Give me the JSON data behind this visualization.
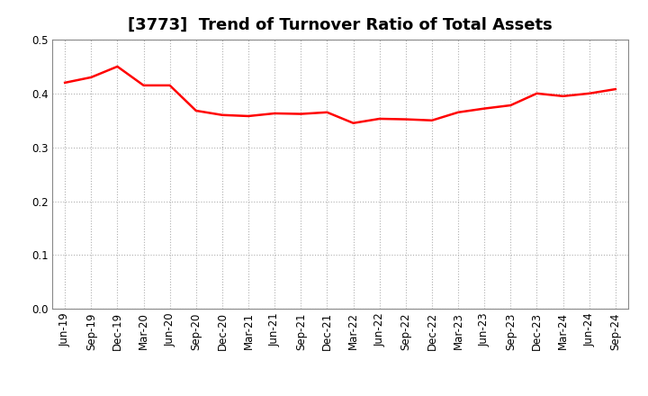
{
  "title": "[3773]  Trend of Turnover Ratio of Total Assets",
  "labels": [
    "Jun-19",
    "Sep-19",
    "Dec-19",
    "Mar-20",
    "Jun-20",
    "Sep-20",
    "Dec-20",
    "Mar-21",
    "Jun-21",
    "Sep-21",
    "Dec-21",
    "Mar-22",
    "Jun-22",
    "Sep-22",
    "Dec-22",
    "Mar-23",
    "Jun-23",
    "Sep-23",
    "Dec-23",
    "Mar-24",
    "Jun-24",
    "Sep-24"
  ],
  "values": [
    0.42,
    0.43,
    0.45,
    0.415,
    0.415,
    0.368,
    0.36,
    0.358,
    0.363,
    0.362,
    0.365,
    0.345,
    0.353,
    0.352,
    0.35,
    0.365,
    0.372,
    0.378,
    0.4,
    0.395,
    0.4,
    0.408
  ],
  "line_color": "#FF0000",
  "line_width": 1.8,
  "ylim": [
    0.0,
    0.5
  ],
  "yticks": [
    0.0,
    0.1,
    0.2,
    0.3,
    0.4,
    0.5
  ],
  "grid_color": "#b0b0b0",
  "grid_linestyle": ":",
  "bg_color": "#ffffff",
  "title_fontsize": 13,
  "tick_fontsize": 8.5
}
